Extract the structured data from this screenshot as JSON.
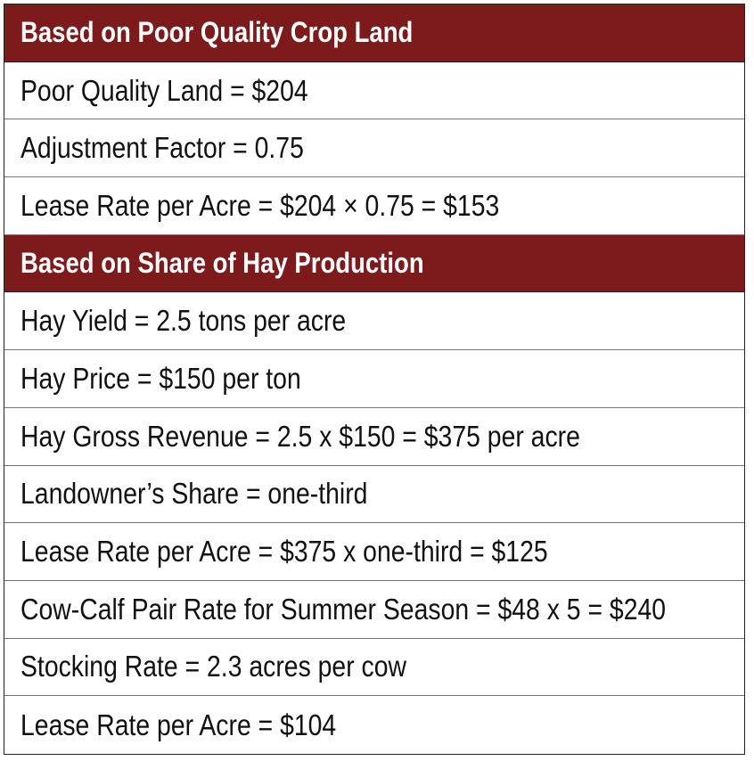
{
  "header_color": "#7d1a1c",
  "rows": [
    {
      "type": "header",
      "text": "Based on Poor Quality Crop Land"
    },
    {
      "type": "cell",
      "text": "Poor Quality Land = $204"
    },
    {
      "type": "cell",
      "text": "Adjustment Factor = 0.75"
    },
    {
      "type": "cell",
      "text": "Lease Rate per Acre = $204 × 0.75 = $153"
    },
    {
      "type": "header",
      "text": "Based on Share of Hay Production"
    },
    {
      "type": "cell",
      "text": "Hay Yield = 2.5 tons per acre"
    },
    {
      "type": "cell",
      "text": "Hay Price = $150 per ton"
    },
    {
      "type": "cell",
      "text": "Hay Gross Revenue = 2.5 x $150 = $375 per acre"
    },
    {
      "type": "cell",
      "text": "Landowner’s Share = one-third"
    },
    {
      "type": "cell",
      "text": "Lease Rate per Acre = $375 x one-third = $125"
    },
    {
      "type": "cell",
      "text": "Cow-Calf Pair Rate for Summer Season = $48 x 5 = $240"
    },
    {
      "type": "cell",
      "text": "Stocking Rate = 2.3 acres per cow"
    },
    {
      "type": "cell",
      "text": "Lease Rate per Acre = $104"
    }
  ]
}
